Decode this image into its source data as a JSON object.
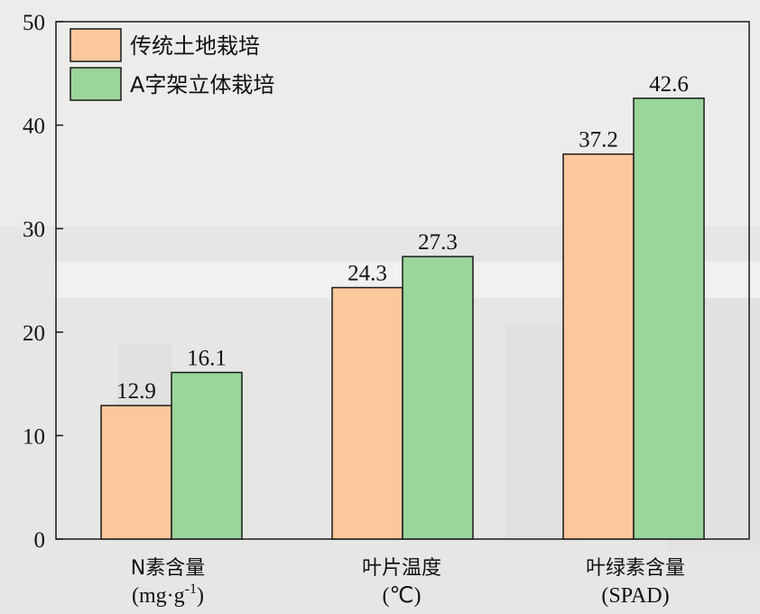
{
  "colors": {
    "series1": "#fbc89c",
    "series2": "#9ad59b",
    "stroke": "#1a1a1a"
  },
  "chart_data": {
    "type": "bar",
    "categories": [
      "N素含量",
      "叶片温度",
      "叶绿素含量"
    ],
    "category_units": [
      "(mg·g",
      "(℃)",
      "(SPAD)"
    ],
    "unit_superscript": "-1",
    "unit_close": ")",
    "series": [
      {
        "name": "传统土地栽培",
        "values": [
          12.9,
          24.3,
          37.2
        ]
      },
      {
        "name": "A字架立体栽培",
        "values": [
          16.1,
          27.3,
          42.6
        ]
      }
    ],
    "data_labels": [
      [
        "12.9",
        "24.3",
        "37.2"
      ],
      [
        "16.1",
        "27.3",
        "42.6"
      ]
    ],
    "yticks": [
      "0",
      "10",
      "20",
      "30",
      "40",
      "50"
    ],
    "ylim": [
      0,
      50
    ],
    "xlabel": "",
    "ylabel": "",
    "legend_placement": "top-left",
    "grid": false
  }
}
